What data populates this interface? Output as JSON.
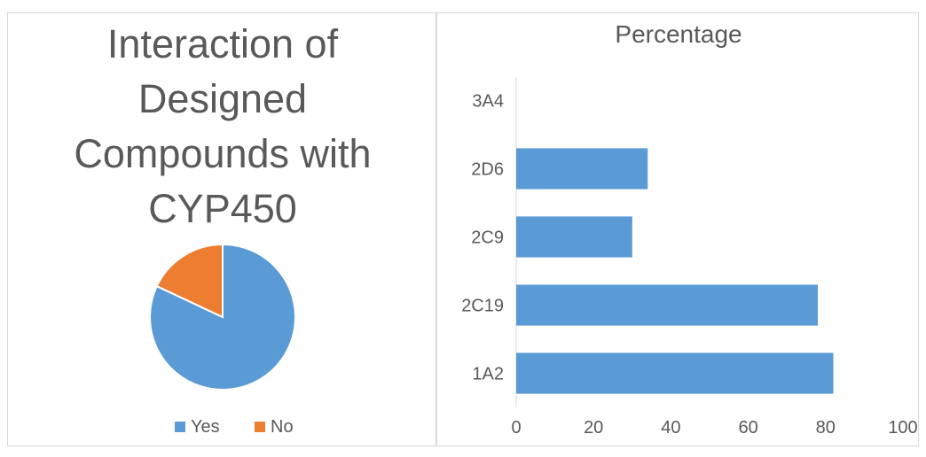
{
  "chart_data": [
    {
      "type": "pie",
      "title": [
        "Interaction of",
        "Designed",
        "Compounds with",
        "CYP450"
      ],
      "slices": [
        {
          "label": "Yes",
          "value": 82,
          "color": "#5b9bd5"
        },
        {
          "label": "No",
          "value": 18,
          "color": "#ed7d31"
        }
      ],
      "legend": "bottom"
    },
    {
      "type": "bar",
      "orientation": "horizontal",
      "title": "Percentage",
      "categories": [
        "1A2",
        "2C19",
        "2C9",
        "2D6",
        "3A4"
      ],
      "values": [
        82,
        78,
        30,
        34,
        0
      ],
      "xlim": [
        0,
        100
      ],
      "xticks": [
        "0",
        "20",
        "40",
        "60",
        "80",
        "100"
      ],
      "color": "#5b9bd5",
      "grid": false
    }
  ]
}
